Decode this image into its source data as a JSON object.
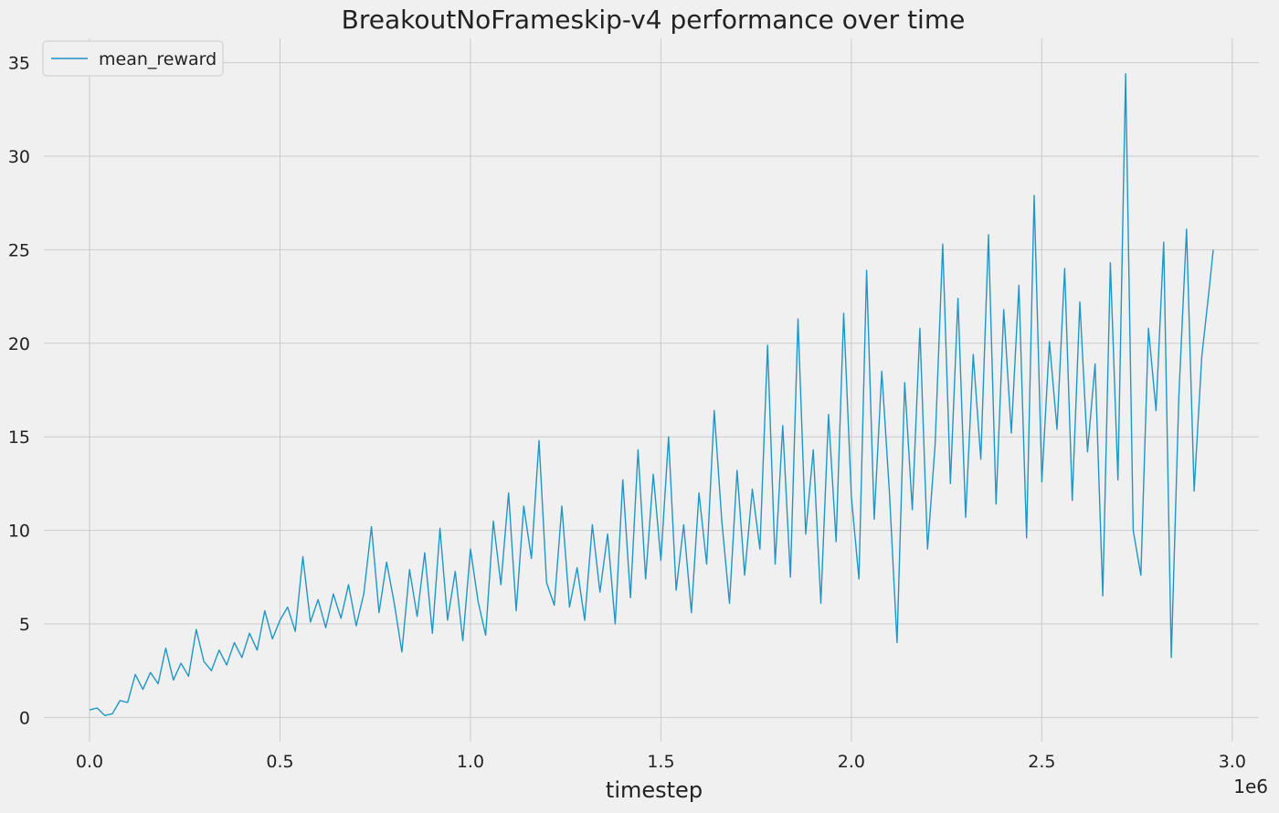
{
  "chart_data": {
    "type": "line",
    "title": "BreakoutNoFrameskip-v4 performance over time",
    "xlabel": "timestep",
    "ylabel": "",
    "x_offset_label": "1e6",
    "xlim": [
      -0.12,
      3.07
    ],
    "ylim": [
      -1.3,
      36.3
    ],
    "x_ticks": [
      {
        "value": 0.0,
        "label": "0.0"
      },
      {
        "value": 0.5,
        "label": "0.5"
      },
      {
        "value": 1.0,
        "label": "1.0"
      },
      {
        "value": 1.5,
        "label": "1.5"
      },
      {
        "value": 2.0,
        "label": "2.0"
      },
      {
        "value": 2.5,
        "label": "2.5"
      },
      {
        "value": 3.0,
        "label": "3.0"
      }
    ],
    "y_ticks": [
      {
        "value": 0,
        "label": "0"
      },
      {
        "value": 5,
        "label": "5"
      },
      {
        "value": 10,
        "label": "10"
      },
      {
        "value": 15,
        "label": "15"
      },
      {
        "value": 20,
        "label": "20"
      },
      {
        "value": 25,
        "label": "25"
      },
      {
        "value": 30,
        "label": "30"
      },
      {
        "value": 35,
        "label": "35"
      }
    ],
    "grid": true,
    "legend_position": "top-left",
    "colors": {
      "series": "#1f97c6",
      "grid": "#cbcbcb",
      "background": "#f0f0f0"
    },
    "series": [
      {
        "name": "mean_reward",
        "x": [
          0.0,
          0.02,
          0.04,
          0.06,
          0.08,
          0.1,
          0.12,
          0.14,
          0.16,
          0.18,
          0.2,
          0.22,
          0.24,
          0.26,
          0.28,
          0.3,
          0.32,
          0.34,
          0.36,
          0.38,
          0.4,
          0.42,
          0.44,
          0.46,
          0.48,
          0.5,
          0.52,
          0.54,
          0.56,
          0.58,
          0.6,
          0.62,
          0.64,
          0.66,
          0.68,
          0.7,
          0.72,
          0.74,
          0.76,
          0.78,
          0.8,
          0.82,
          0.84,
          0.86,
          0.88,
          0.9,
          0.92,
          0.94,
          0.96,
          0.98,
          1.0,
          1.02,
          1.04,
          1.06,
          1.08,
          1.1,
          1.12,
          1.14,
          1.16,
          1.18,
          1.2,
          1.22,
          1.24,
          1.26,
          1.28,
          1.3,
          1.32,
          1.34,
          1.36,
          1.38,
          1.4,
          1.42,
          1.44,
          1.46,
          1.48,
          1.5,
          1.52,
          1.54,
          1.56,
          1.58,
          1.6,
          1.62,
          1.64,
          1.66,
          1.68,
          1.7,
          1.72,
          1.74,
          1.76,
          1.78,
          1.8,
          1.82,
          1.84,
          1.86,
          1.88,
          1.9,
          1.92,
          1.94,
          1.96,
          1.98,
          2.0,
          2.02,
          2.04,
          2.06,
          2.08,
          2.1,
          2.12,
          2.14,
          2.16,
          2.18,
          2.2,
          2.22,
          2.24,
          2.26,
          2.28,
          2.3,
          2.32,
          2.34,
          2.36,
          2.38,
          2.4,
          2.42,
          2.44,
          2.46,
          2.48,
          2.5,
          2.52,
          2.54,
          2.56,
          2.58,
          2.6,
          2.62,
          2.64,
          2.66,
          2.68,
          2.7,
          2.72,
          2.74,
          2.76,
          2.78,
          2.8,
          2.82,
          2.84,
          2.86,
          2.88,
          2.9,
          2.92,
          2.94,
          2.95
        ],
        "values": [
          0.4,
          0.5,
          0.1,
          0.2,
          0.9,
          0.8,
          2.3,
          1.5,
          2.4,
          1.8,
          3.7,
          2.0,
          2.9,
          2.2,
          4.7,
          3.0,
          2.5,
          3.6,
          2.8,
          4.0,
          3.2,
          4.5,
          3.6,
          5.7,
          4.2,
          5.2,
          5.9,
          4.6,
          8.6,
          5.1,
          6.3,
          4.8,
          6.6,
          5.3,
          7.1,
          4.9,
          6.6,
          10.2,
          5.6,
          8.3,
          6.1,
          3.5,
          7.9,
          5.4,
          8.8,
          4.5,
          10.1,
          5.2,
          7.8,
          4.1,
          9.0,
          6.2,
          4.4,
          10.5,
          7.1,
          12.0,
          5.7,
          11.3,
          8.5,
          14.8,
          7.2,
          6.0,
          11.3,
          5.9,
          8.0,
          5.2,
          10.3,
          6.7,
          9.8,
          5.0,
          12.7,
          6.4,
          14.3,
          7.4,
          13.0,
          8.4,
          15.0,
          6.8,
          10.3,
          5.6,
          12.0,
          8.2,
          16.4,
          10.5,
          6.1,
          13.2,
          7.6,
          12.2,
          9.0,
          19.9,
          8.2,
          15.6,
          7.5,
          21.3,
          9.8,
          14.3,
          6.1,
          16.2,
          9.4,
          21.6,
          11.8,
          7.4,
          23.9,
          10.6,
          18.5,
          12.0,
          4.0,
          17.9,
          11.1,
          20.8,
          9.0,
          14.6,
          25.3,
          12.5,
          22.4,
          10.7,
          19.4,
          13.8,
          25.8,
          11.4,
          21.8,
          15.2,
          23.1,
          9.6,
          27.9,
          12.6,
          20.1,
          15.4,
          24.0,
          11.6,
          22.2,
          14.2,
          18.9,
          6.5,
          24.3,
          12.7,
          34.4,
          10.0,
          7.6,
          20.8,
          16.4,
          25.4,
          3.2,
          17.2,
          26.1,
          12.1,
          19.3,
          23.0,
          25.0
        ]
      }
    ]
  }
}
